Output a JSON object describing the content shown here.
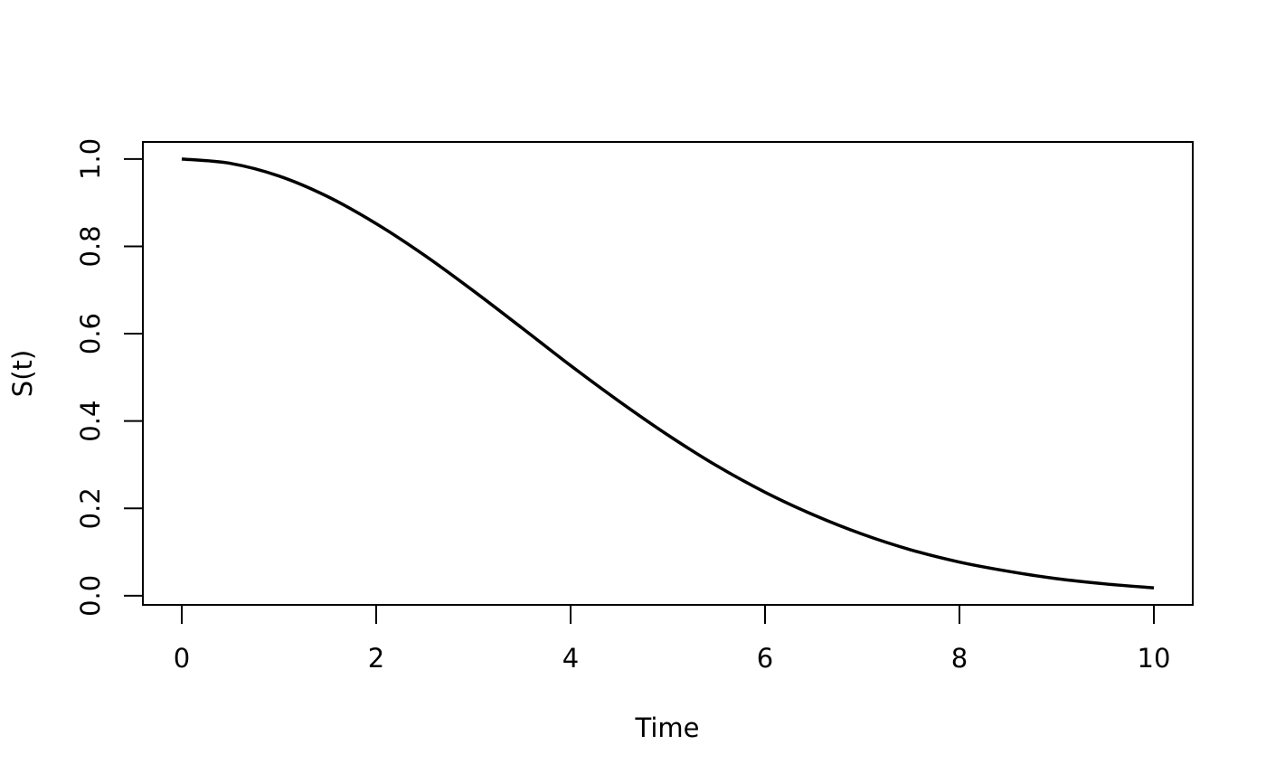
{
  "chart_data": {
    "type": "line",
    "title": "",
    "xlabel": "Time",
    "ylabel": "S(t)",
    "xlim": [
      -0.4,
      10.4
    ],
    "ylim": [
      -0.021,
      1.039
    ],
    "xticks": [
      "0",
      "2",
      "4",
      "6",
      "8",
      "10"
    ],
    "yticks": [
      "0.0",
      "0.2",
      "0.4",
      "0.6",
      "0.8",
      "1.0"
    ],
    "grid": false,
    "line_color": "#000000",
    "series": [
      {
        "x": [
          0,
          0.5,
          1,
          1.5,
          2,
          2.5,
          3,
          3.5,
          4,
          4.5,
          5,
          5.5,
          6,
          6.5,
          7,
          7.5,
          8,
          8.5,
          9,
          9.5,
          10
        ],
        "y": [
          1.0,
          0.99,
          0.961,
          0.914,
          0.852,
          0.779,
          0.698,
          0.613,
          0.527,
          0.445,
          0.368,
          0.298,
          0.237,
          0.185,
          0.141,
          0.105,
          0.077,
          0.056,
          0.039,
          0.027,
          0.018
        ]
      }
    ]
  }
}
